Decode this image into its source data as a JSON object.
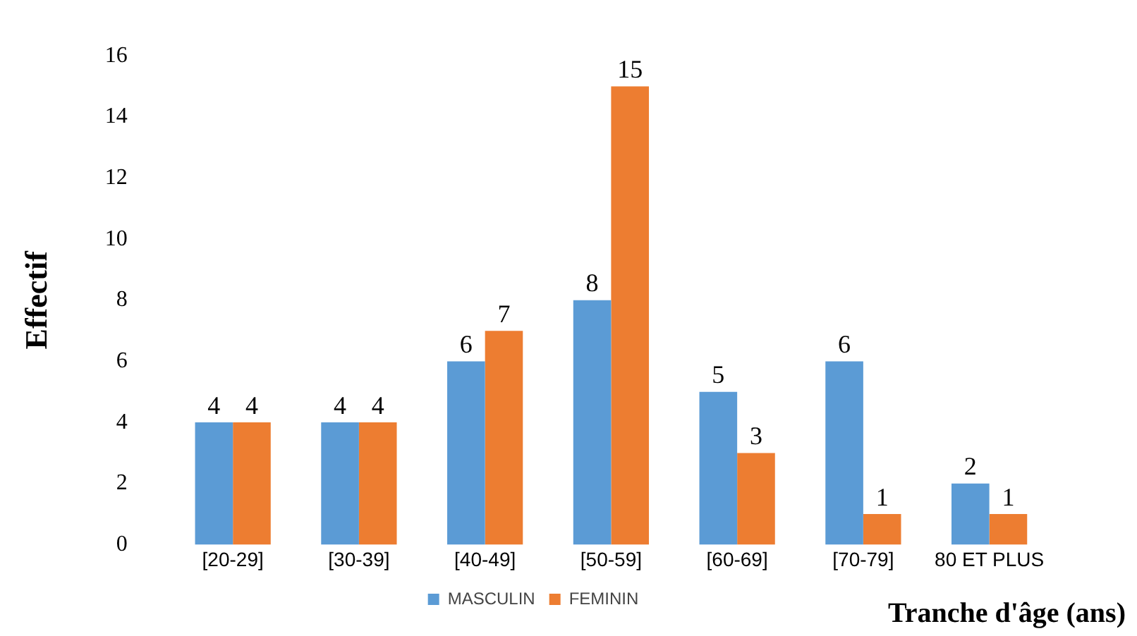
{
  "chart_data": {
    "type": "bar",
    "xlabel": "Tranche d'âge (ans)",
    "ylabel": "Effectif",
    "categories": [
      "[20-29]",
      "[30-39]",
      "[40-49]",
      "[50-59]",
      "[60-69]",
      "[70-79]",
      "80 ET PLUS"
    ],
    "series": [
      {
        "name": "MASCULIN",
        "color": "#5b9bd5",
        "values": [
          4,
          4,
          6,
          8,
          5,
          6,
          2
        ]
      },
      {
        "name": "FEMININ",
        "color": "#ed7d31",
        "values": [
          4,
          4,
          7,
          15,
          3,
          1,
          1
        ]
      }
    ],
    "ylim": [
      0,
      16
    ],
    "yticks": [
      0,
      2,
      4,
      6,
      8,
      10,
      12,
      14,
      16
    ],
    "grid": false,
    "legend": "bottom",
    "data_labels": true
  }
}
